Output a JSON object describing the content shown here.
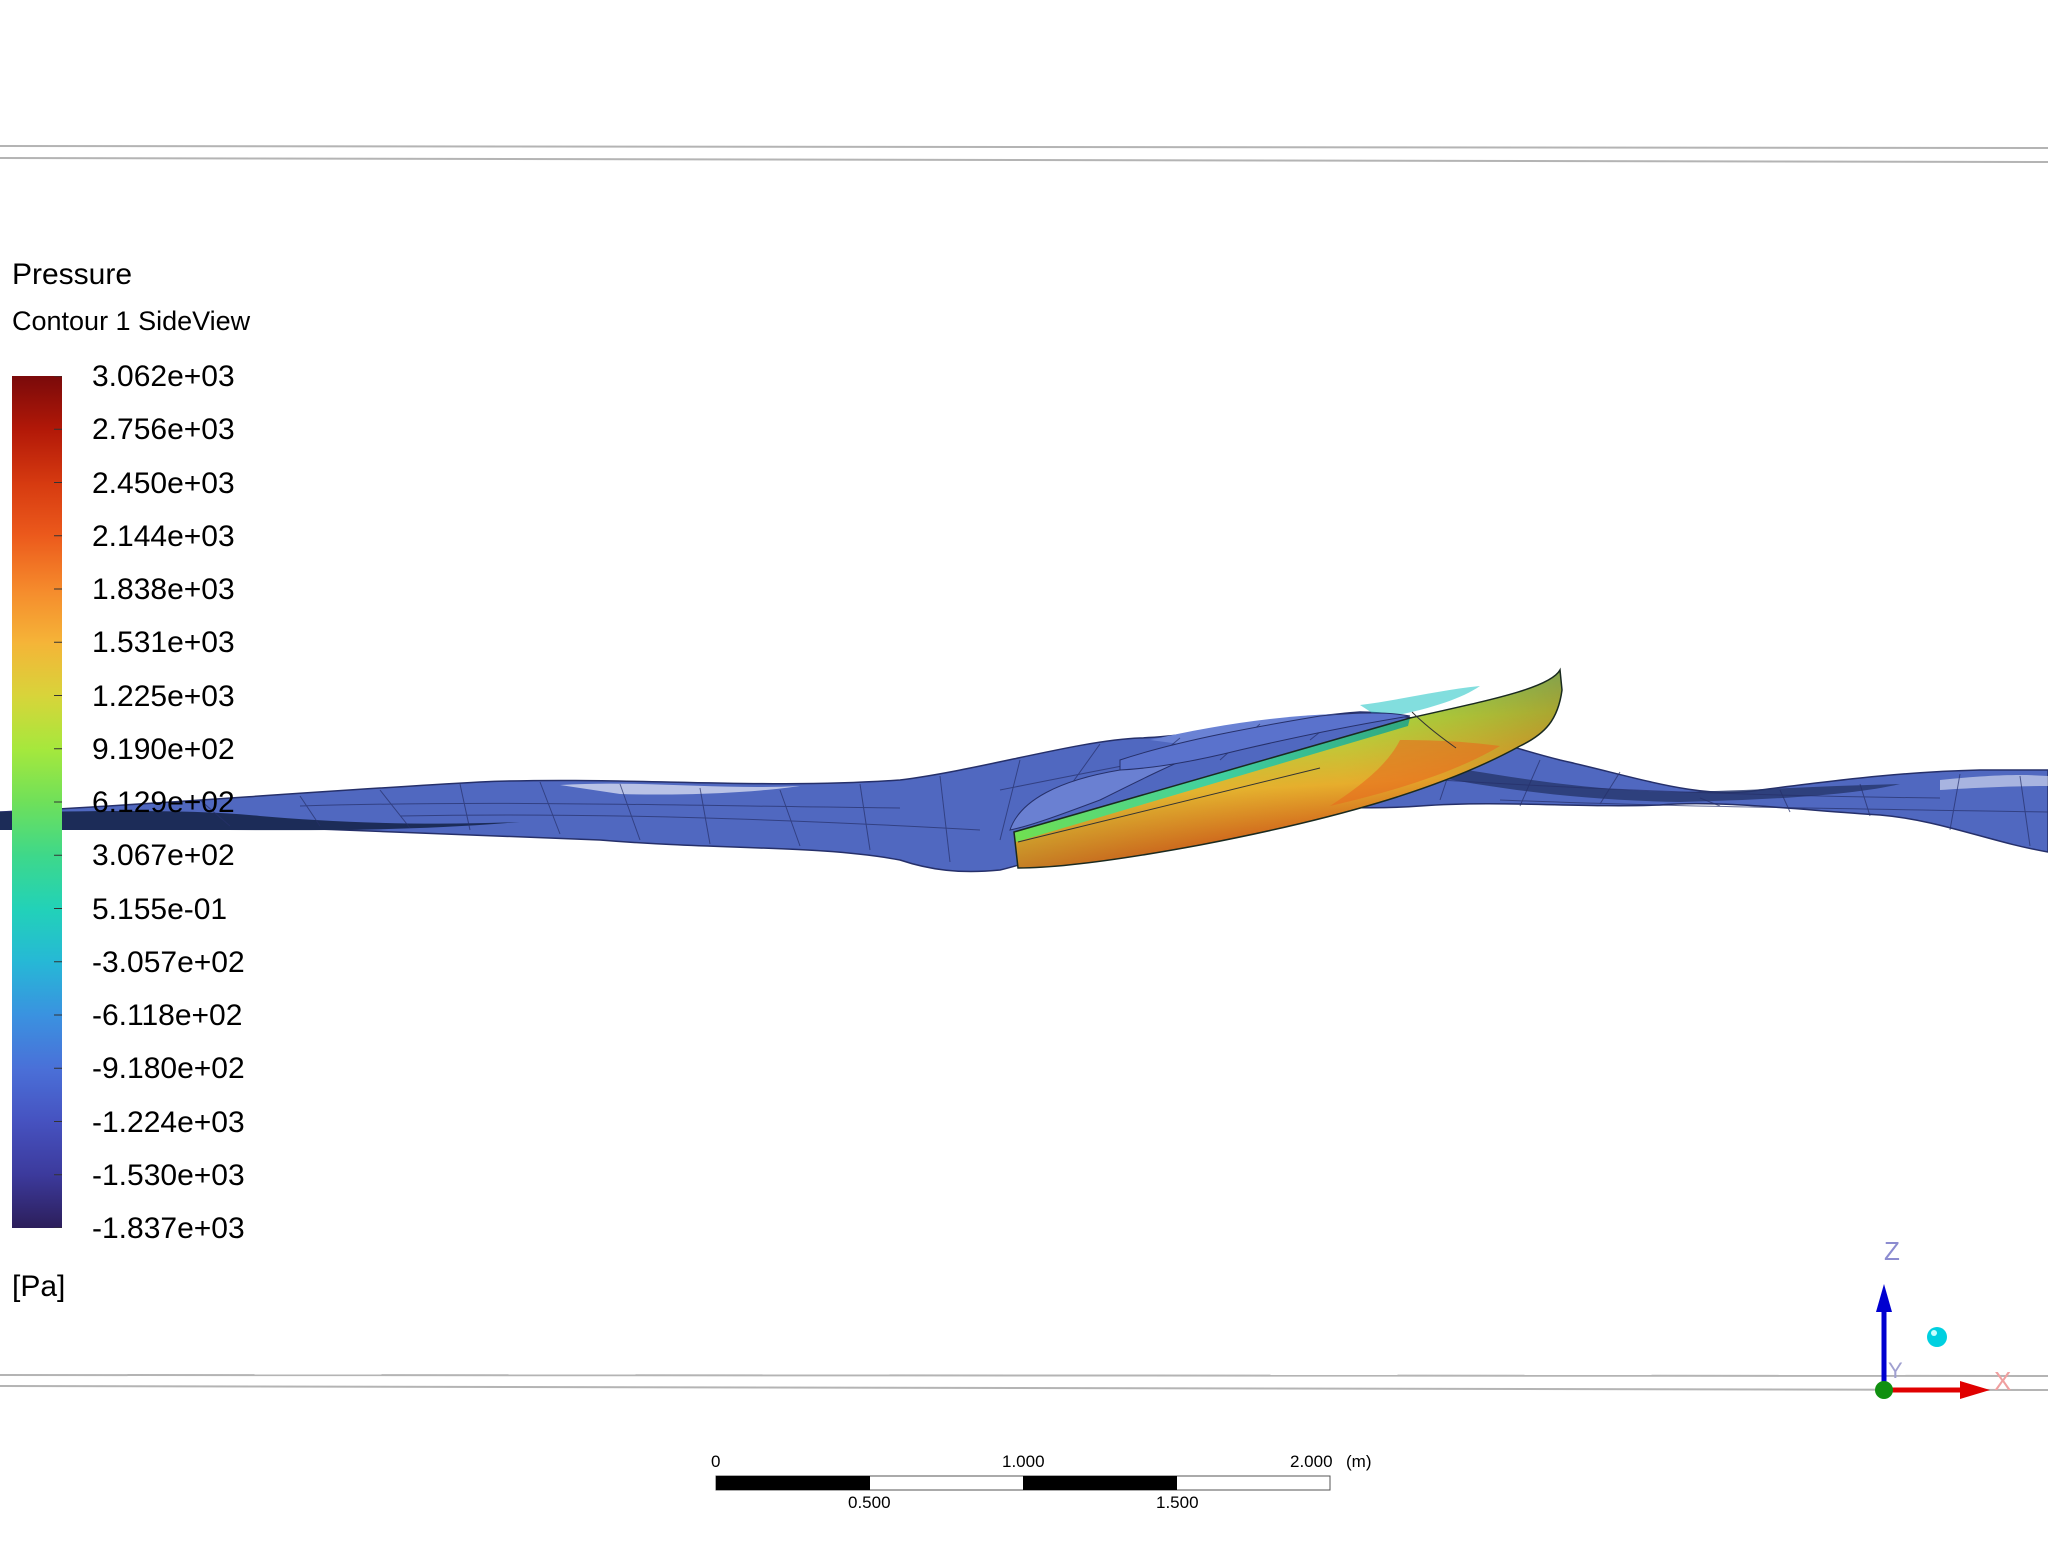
{
  "legend": {
    "title": "Pressure",
    "subtitle": "Contour 1 SideView",
    "unit": "[Pa]",
    "labels": [
      "3.062e+03",
      "2.756e+03",
      "2.450e+03",
      "2.144e+03",
      "1.838e+03",
      "1.531e+03",
      "1.225e+03",
      "9.190e+02",
      "6.129e+02",
      "3.067e+02",
      "5.155e-01",
      "-3.057e+02",
      "-6.118e+02",
      "-9.180e+02",
      "-1.224e+03",
      "-1.530e+03",
      "-1.837e+03"
    ],
    "colors": [
      "#7a0a0a",
      "#b21808",
      "#d63a10",
      "#ec5a1c",
      "#f58a2c",
      "#f5b438",
      "#d8d43a",
      "#a6e83c",
      "#6fe05a",
      "#3ed88a",
      "#22d2b8",
      "#26b8d6",
      "#3a92e0",
      "#4a70d8",
      "#4652c0",
      "#3c3a9c",
      "#2c1e5a"
    ]
  },
  "scale_bar": {
    "unit": "(m)",
    "top_labels": [
      "0",
      "1.000",
      "2.000"
    ],
    "bottom_labels": [
      "0.500",
      "1.500"
    ]
  },
  "triad": {
    "z_label": "Z",
    "x_label": "X",
    "y_label": "Y"
  },
  "scene": {
    "water_color": "#5068c0",
    "water_dark": "#1c2c58",
    "frame_line_color": "#b4b4b4"
  }
}
